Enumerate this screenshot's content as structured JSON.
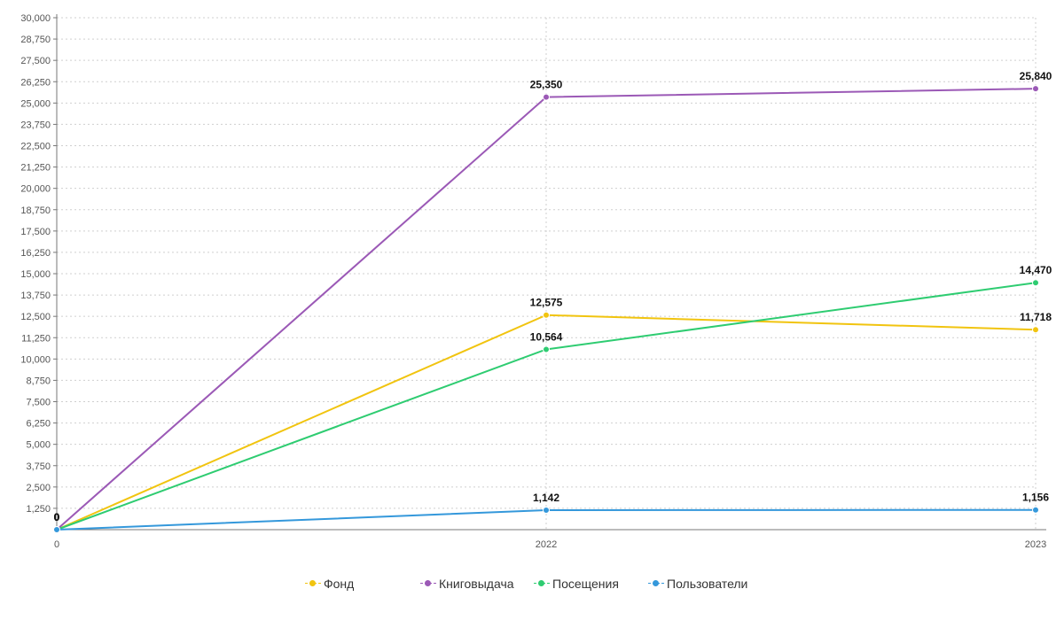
{
  "chart_data": {
    "type": "line",
    "x": [
      "0",
      "2022",
      "2023"
    ],
    "ylim": [
      0,
      30000
    ],
    "ytick_step": 1250,
    "ytick_labels": [
      "1,250",
      "2,500",
      "3,750",
      "5,000",
      "6,250",
      "7,500",
      "8,750",
      "10,000",
      "11,250",
      "12,500",
      "13,750",
      "15,000",
      "16,250",
      "17,500",
      "18,750",
      "20,000",
      "21,250",
      "22,500",
      "23,750",
      "25,000",
      "26,250",
      "27,500",
      "28,750",
      "30,000"
    ],
    "grid": true,
    "legend_position": "bottom",
    "series": [
      {
        "name": "Фонд",
        "color": "#f1c40f",
        "values": [
          0,
          12575,
          11718
        ],
        "labels": [
          "0",
          "12,575",
          "11,718"
        ]
      },
      {
        "name": "Книговыдача",
        "color": "#9b59b6",
        "values": [
          0,
          25350,
          25840
        ],
        "labels": [
          "0",
          "25,350",
          "25,840"
        ]
      },
      {
        "name": "Посещения",
        "color": "#2ecc71",
        "values": [
          0,
          10564,
          14470
        ],
        "labels": [
          "0",
          "10,564",
          "14,470"
        ]
      },
      {
        "name": "Пользователи",
        "color": "#3498db",
        "values": [
          0,
          1142,
          1156
        ],
        "labels": [
          "0",
          "1,142",
          "1,156"
        ]
      }
    ]
  }
}
